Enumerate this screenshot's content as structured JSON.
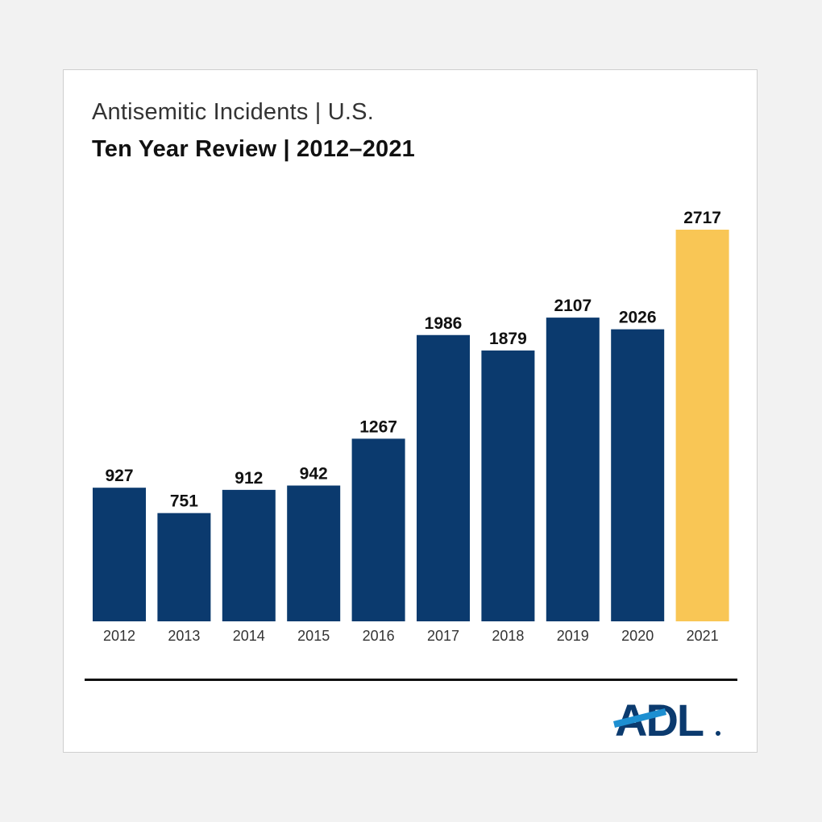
{
  "chart_data": {
    "type": "bar",
    "title": "Antisemitic Incidents | U.S.",
    "subtitle": "Ten Year Review | 2012–2021",
    "categories": [
      "2012",
      "2013",
      "2014",
      "2015",
      "2016",
      "2017",
      "2018",
      "2019",
      "2020",
      "2021"
    ],
    "values": [
      927,
      751,
      912,
      942,
      1267,
      1986,
      1879,
      2107,
      2026,
      2717
    ],
    "xlabel": "",
    "ylabel": "",
    "ylim": [
      0,
      2717
    ],
    "grid": false,
    "legend": "none",
    "colors": {
      "default_bar": "#0b3a6e",
      "highlight_bar": "#f9c655",
      "highlight_category": "2021",
      "label": "#111111",
      "tick": "#333333"
    }
  },
  "logo": {
    "text": "ADL",
    "colors": {
      "navy": "#0b3a6e",
      "accent": "#1d8fd1"
    }
  }
}
